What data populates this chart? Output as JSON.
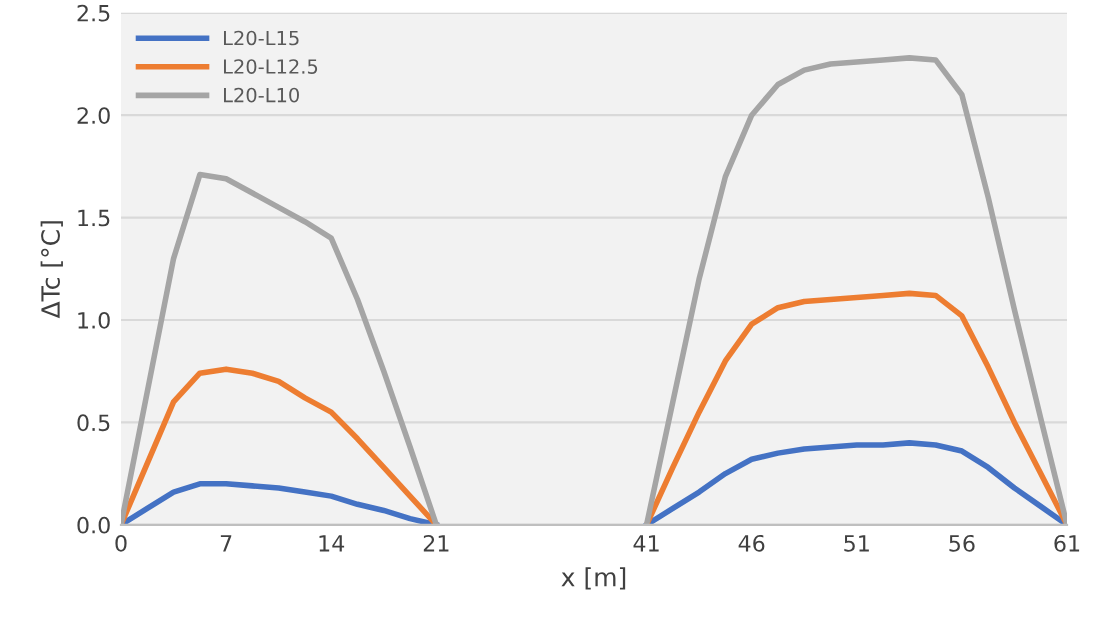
{
  "chart_data": {
    "type": "line",
    "xlabel": "x [m]",
    "ylabel": "ΔTc [°C]",
    "categories": [
      "0",
      null,
      null,
      null,
      "7",
      null,
      null,
      null,
      "14",
      null,
      null,
      null,
      "21",
      null,
      null,
      null,
      null,
      null,
      null,
      null,
      "41",
      null,
      null,
      null,
      "46",
      null,
      null,
      null,
      "51",
      null,
      null,
      null,
      "56",
      null,
      null,
      null,
      "61"
    ],
    "series": [
      {
        "name": "L20-L15",
        "color": "#4472c4",
        "values": [
          0,
          0.08,
          0.16,
          0.2,
          0.2,
          0.19,
          0.18,
          0.16,
          0.14,
          0.1,
          0.07,
          0.03,
          0,
          null,
          null,
          null,
          null,
          null,
          null,
          null,
          0,
          0.08,
          0.16,
          0.25,
          0.32,
          0.35,
          0.37,
          0.38,
          0.39,
          0.39,
          0.4,
          0.39,
          0.36,
          0.28,
          0.18,
          0.09,
          0
        ]
      },
      {
        "name": "L20-L12.5",
        "color": "#ed7d31",
        "values": [
          0,
          0.3,
          0.6,
          0.74,
          0.76,
          0.74,
          0.7,
          0.62,
          0.55,
          0.42,
          0.28,
          0.14,
          0,
          null,
          null,
          null,
          null,
          null,
          null,
          null,
          0,
          0.28,
          0.55,
          0.8,
          0.98,
          1.06,
          1.09,
          1.1,
          1.11,
          1.12,
          1.13,
          1.12,
          1.02,
          0.77,
          0.5,
          0.25,
          0
        ]
      },
      {
        "name": "L20-L10",
        "color": "#a5a5a5",
        "values": [
          0,
          0.65,
          1.3,
          1.71,
          1.69,
          1.62,
          1.55,
          1.48,
          1.4,
          1.1,
          0.75,
          0.38,
          0,
          null,
          null,
          null,
          null,
          null,
          null,
          null,
          0,
          0.6,
          1.2,
          1.7,
          2.0,
          2.15,
          2.22,
          2.25,
          2.26,
          2.27,
          2.28,
          2.27,
          2.1,
          1.6,
          1.05,
          0.52,
          0
        ]
      }
    ],
    "ylim": [
      0,
      2.5
    ],
    "yticks": [
      {
        "value": 0,
        "label": "0.0"
      },
      {
        "value": 0.5,
        "label": "0.5"
      },
      {
        "value": 1,
        "label": "1.0"
      },
      {
        "value": 1.5,
        "label": "1.5"
      },
      {
        "value": 2,
        "label": "2.0"
      },
      {
        "value": 2.5,
        "label": "2.5"
      }
    ],
    "grid": "y",
    "legend": "top left",
    "marker": "none",
    "line_style": "solid"
  }
}
